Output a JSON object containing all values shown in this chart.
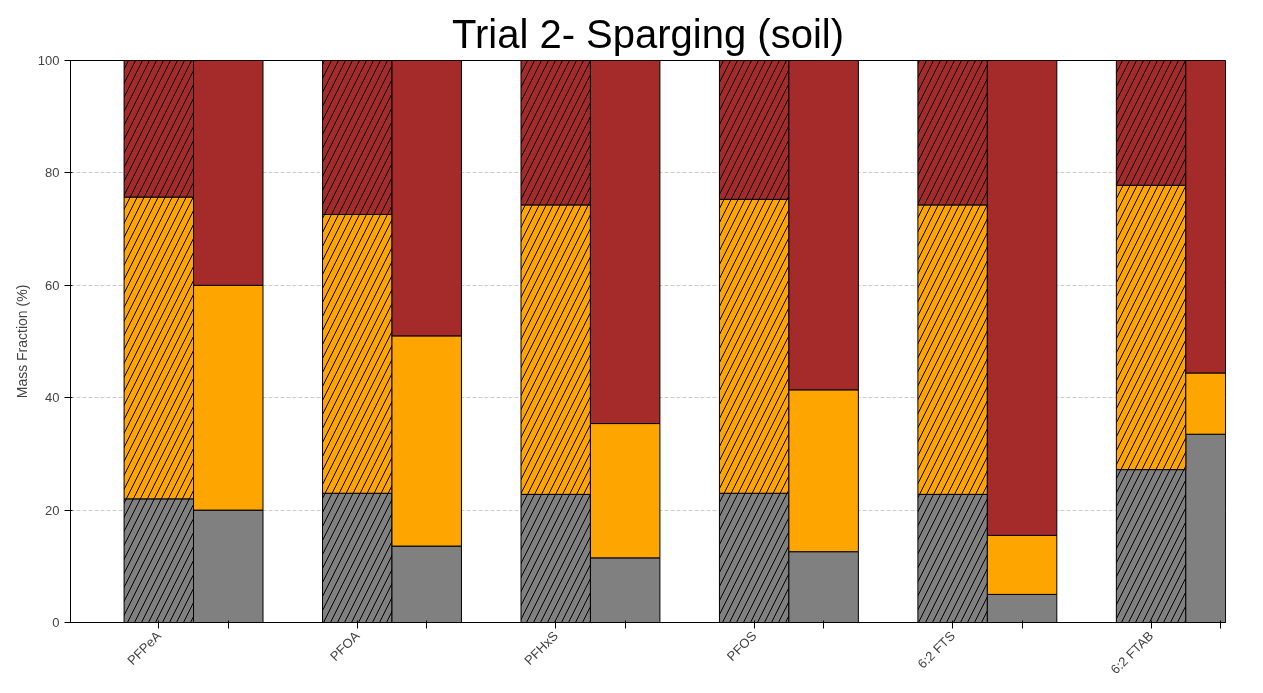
{
  "chart_data": {
    "type": "bar",
    "title": "Trial 2- Sparging (soil)",
    "ylabel": "Mass Fraction (%)",
    "categories": [
      "PFPeA",
      null,
      "PFOA",
      null,
      "PFHxS",
      null,
      "PFOS",
      null,
      "6:2 FTS",
      null,
      "6:2 FTAB",
      null
    ],
    "stacked": true,
    "ylim": [
      0,
      100
    ],
    "yticks": [
      0,
      20,
      40,
      60,
      80,
      100
    ],
    "grid": "y",
    "series": [
      {
        "color": "#808080",
        "values": [
          22.0,
          20.0,
          23.0,
          13.6,
          22.8,
          11.5,
          23.0,
          12.6,
          22.8,
          5.0,
          27.2,
          33.5
        ]
      },
      {
        "color": "#ffa500",
        "values": [
          53.7,
          40.0,
          49.6,
          37.4,
          51.5,
          23.9,
          52.3,
          28.8,
          51.5,
          10.5,
          50.6,
          10.9
        ]
      },
      {
        "color": "#a52a2a",
        "values": [
          24.3,
          40.0,
          27.4,
          49.0,
          25.7,
          64.6,
          24.7,
          58.6,
          25.7,
          84.5,
          22.2,
          55.6
        ]
      }
    ]
  }
}
